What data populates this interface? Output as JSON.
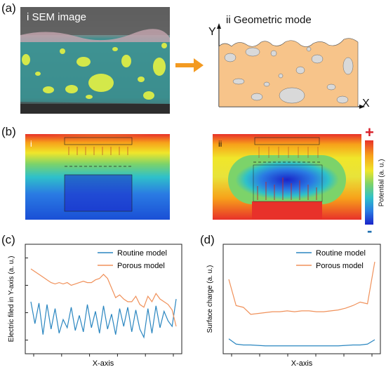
{
  "panel_a": {
    "label": "(a)",
    "sem_title": "i SEM image",
    "geo_title": "ii Geometric mode",
    "axis_y": "Y",
    "axis_x": "X",
    "colors": {
      "particle": "#d4e84a",
      "matrix": "#3a8c8c",
      "geometry": "#f7c48a",
      "pore": "#d9d9d9",
      "arrow": "#f39a21"
    }
  },
  "panel_b": {
    "label": "(b)",
    "sub_i": "i",
    "sub_ii": "ii",
    "colorbar": {
      "title": "Potential (a. u.)",
      "plus": "+",
      "minus": "-",
      "colors": [
        "#e8312a",
        "#f7a11a",
        "#f0e62a",
        "#7cd36a",
        "#2fc1c9",
        "#2a7be3",
        "#1a24c9"
      ]
    }
  },
  "panel_c": {
    "label": "(c)",
    "chart_data": {
      "type": "line",
      "xlabel": "X-axis",
      "ylabel": "Electric filed in Y-axis (a. u.)",
      "legend_position": "top-right",
      "series": [
        {
          "name": "Routine model",
          "color": "#2a86c0",
          "x": [
            0,
            1,
            2,
            3,
            4,
            5,
            6,
            7,
            8,
            9,
            10,
            11,
            12,
            13,
            14,
            15,
            16,
            17,
            18,
            19,
            20,
            21,
            22,
            23,
            24,
            25,
            26,
            27,
            28,
            29,
            30,
            31,
            32,
            33,
            34,
            35,
            36
          ],
          "y": [
            0.38,
            0.22,
            0.37,
            0.14,
            0.36,
            0.18,
            0.33,
            0.15,
            0.25,
            0.19,
            0.34,
            0.17,
            0.28,
            0.16,
            0.36,
            0.19,
            0.31,
            0.15,
            0.35,
            0.18,
            0.29,
            0.14,
            0.33,
            0.2,
            0.34,
            0.16,
            0.32,
            0.18,
            0.12,
            0.33,
            0.15,
            0.35,
            0.19,
            0.31,
            0.24,
            0.2,
            0.4
          ]
        },
        {
          "name": "Porous model",
          "color": "#f0915a",
          "x": [
            0,
            1,
            2,
            3,
            4,
            5,
            6,
            7,
            8,
            9,
            10,
            11,
            12,
            13,
            14,
            15,
            16,
            17,
            18,
            19,
            20,
            21,
            22,
            23,
            24,
            25,
            26,
            27,
            28,
            29,
            30,
            31,
            32,
            33,
            34,
            35,
            36
          ],
          "y": [
            0.62,
            0.6,
            0.58,
            0.56,
            0.54,
            0.52,
            0.51,
            0.52,
            0.51,
            0.52,
            0.5,
            0.51,
            0.52,
            0.53,
            0.52,
            0.52,
            0.54,
            0.55,
            0.58,
            0.55,
            0.48,
            0.41,
            0.43,
            0.4,
            0.38,
            0.38,
            0.42,
            0.36,
            0.34,
            0.42,
            0.38,
            0.44,
            0.4,
            0.38,
            0.36,
            0.32,
            0.2
          ]
        }
      ]
    }
  },
  "panel_d": {
    "label": "(d)",
    "chart_data": {
      "type": "line",
      "xlabel": "X-axis",
      "ylabel": "Surface charge (a. u.)",
      "legend_position": "top-right",
      "series": [
        {
          "name": "Routine model",
          "color": "#2a86c0",
          "x": [
            0,
            1,
            2,
            3,
            4,
            5,
            6,
            7,
            8,
            9,
            10,
            11,
            12,
            13,
            14,
            15,
            16,
            17,
            18,
            19,
            20
          ],
          "y": [
            0.12,
            0.06,
            0.05,
            0.05,
            0.045,
            0.04,
            0.04,
            0.04,
            0.04,
            0.04,
            0.04,
            0.04,
            0.04,
            0.04,
            0.04,
            0.04,
            0.045,
            0.05,
            0.05,
            0.06,
            0.11
          ]
        },
        {
          "name": "Porous model",
          "color": "#f0915a",
          "x": [
            0,
            1,
            2,
            3,
            4,
            5,
            6,
            7,
            8,
            9,
            10,
            11,
            12,
            13,
            14,
            15,
            16,
            17,
            18,
            19,
            20
          ],
          "y": [
            0.8,
            0.5,
            0.48,
            0.4,
            0.41,
            0.42,
            0.43,
            0.43,
            0.44,
            0.43,
            0.44,
            0.44,
            0.43,
            0.43,
            0.44,
            0.45,
            0.47,
            0.5,
            0.54,
            0.52,
            1.0
          ]
        }
      ]
    }
  }
}
